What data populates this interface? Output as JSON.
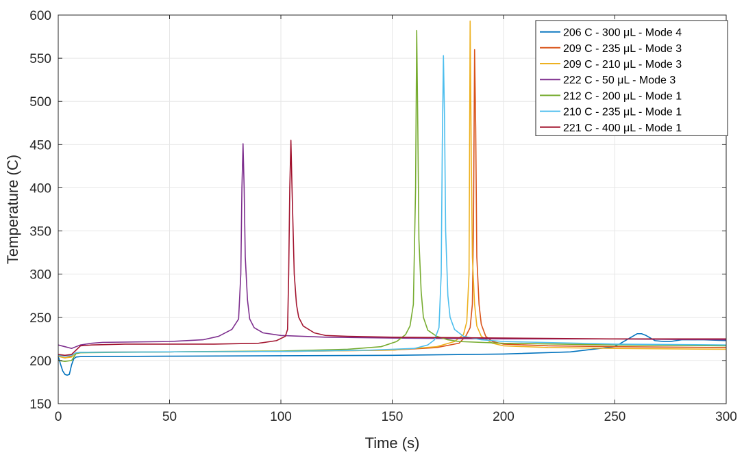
{
  "chart_data": {
    "type": "line",
    "title": "",
    "xlabel": "Time (s)",
    "ylabel": "Temperature (C)",
    "xlim": [
      0,
      300
    ],
    "ylim": [
      150,
      600
    ],
    "xticks": [
      0,
      50,
      100,
      150,
      200,
      250,
      300
    ],
    "yticks": [
      150,
      200,
      250,
      300,
      350,
      400,
      450,
      500,
      550,
      600
    ],
    "grid": true,
    "legend_position": "top-right",
    "series": [
      {
        "name": "206 C - 300 μL - Mode 4",
        "color": "#0072BD",
        "points": [
          [
            0,
            205
          ],
          [
            1,
            196
          ],
          [
            2,
            188
          ],
          [
            3,
            184
          ],
          [
            4,
            183
          ],
          [
            5,
            184
          ],
          [
            6,
            195
          ],
          [
            7,
            202
          ],
          [
            8,
            204
          ],
          [
            10,
            204.5
          ],
          [
            50,
            205
          ],
          [
            100,
            205.5
          ],
          [
            150,
            206
          ],
          [
            200,
            207.5
          ],
          [
            230,
            210
          ],
          [
            250,
            216
          ],
          [
            256,
            225
          ],
          [
            260,
            231
          ],
          [
            262,
            231
          ],
          [
            264,
            229
          ],
          [
            268,
            223
          ],
          [
            272,
            222
          ],
          [
            275,
            222
          ],
          [
            280,
            224
          ],
          [
            290,
            224
          ],
          [
            300,
            223
          ]
        ]
      },
      {
        "name": "209 C - 235 μL - Mode 3",
        "color": "#D95319",
        "points": [
          [
            0,
            205
          ],
          [
            3,
            203
          ],
          [
            6,
            205
          ],
          [
            8,
            209
          ],
          [
            10,
            209.5
          ],
          [
            50,
            210
          ],
          [
            100,
            210.5
          ],
          [
            150,
            212
          ],
          [
            170,
            215
          ],
          [
            180,
            220
          ],
          [
            183,
            228
          ],
          [
            185,
            238
          ],
          [
            186,
            265
          ],
          [
            186.5,
            360
          ],
          [
            187,
            560
          ],
          [
            187.5,
            470
          ],
          [
            188,
            320
          ],
          [
            189,
            265
          ],
          [
            190,
            242
          ],
          [
            192,
            228
          ],
          [
            195,
            222
          ],
          [
            200,
            219
          ],
          [
            220,
            217
          ],
          [
            250,
            216
          ],
          [
            300,
            215
          ]
        ]
      },
      {
        "name": "209 C - 210 μL - Mode 3",
        "color": "#EDB120",
        "points": [
          [
            0,
            205
          ],
          [
            3,
            203
          ],
          [
            6,
            204
          ],
          [
            8,
            209
          ],
          [
            10,
            209.5
          ],
          [
            50,
            210
          ],
          [
            100,
            210.5
          ],
          [
            150,
            212
          ],
          [
            170,
            216
          ],
          [
            178,
            222
          ],
          [
            182,
            230
          ],
          [
            183.5,
            245
          ],
          [
            184.5,
            300
          ],
          [
            185,
            593
          ],
          [
            185.5,
            440
          ],
          [
            186,
            320
          ],
          [
            187,
            265
          ],
          [
            188,
            240
          ],
          [
            190,
            228
          ],
          [
            195,
            220
          ],
          [
            200,
            217
          ],
          [
            220,
            215
          ],
          [
            250,
            214
          ],
          [
            300,
            213
          ]
        ]
      },
      {
        "name": "222 C - 50 μL - Mode 3",
        "color": "#7E2F8E",
        "points": [
          [
            0,
            218
          ],
          [
            3,
            216
          ],
          [
            6,
            214
          ],
          [
            8,
            216
          ],
          [
            10,
            218
          ],
          [
            15,
            220
          ],
          [
            20,
            221
          ],
          [
            50,
            222
          ],
          [
            65,
            224
          ],
          [
            72,
            228
          ],
          [
            78,
            236
          ],
          [
            81,
            248
          ],
          [
            82,
            300
          ],
          [
            82.5,
            400
          ],
          [
            83,
            451
          ],
          [
            83.5,
            400
          ],
          [
            84,
            320
          ],
          [
            85,
            270
          ],
          [
            86,
            248
          ],
          [
            88,
            238
          ],
          [
            92,
            232
          ],
          [
            100,
            229
          ],
          [
            120,
            227
          ],
          [
            150,
            226
          ],
          [
            200,
            225
          ],
          [
            250,
            225
          ],
          [
            300,
            224
          ]
        ]
      },
      {
        "name": "212 C - 200 μL - Mode 1",
        "color": "#77AC30",
        "points": [
          [
            0,
            200
          ],
          [
            3,
            199
          ],
          [
            6,
            200
          ],
          [
            8,
            208
          ],
          [
            10,
            209
          ],
          [
            50,
            210
          ],
          [
            100,
            211
          ],
          [
            130,
            213
          ],
          [
            145,
            216
          ],
          [
            152,
            222
          ],
          [
            156,
            230
          ],
          [
            158,
            240
          ],
          [
            159.5,
            265
          ],
          [
            160.5,
            400
          ],
          [
            161,
            582
          ],
          [
            161.5,
            470
          ],
          [
            162,
            340
          ],
          [
            163,
            280
          ],
          [
            164,
            250
          ],
          [
            166,
            235
          ],
          [
            170,
            228
          ],
          [
            175,
            224
          ],
          [
            180,
            222
          ],
          [
            200,
            220
          ],
          [
            250,
            218
          ],
          [
            300,
            217
          ]
        ]
      },
      {
        "name": "210 C - 235 μL - Mode 1",
        "color": "#4DBEEE",
        "points": [
          [
            0,
            206
          ],
          [
            3,
            205
          ],
          [
            6,
            206
          ],
          [
            8,
            209
          ],
          [
            10,
            209.5
          ],
          [
            50,
            210
          ],
          [
            100,
            210.5
          ],
          [
            140,
            212
          ],
          [
            160,
            214
          ],
          [
            166,
            218
          ],
          [
            169,
            224
          ],
          [
            171,
            238
          ],
          [
            172,
            300
          ],
          [
            172.5,
            450
          ],
          [
            173,
            553
          ],
          [
            173.5,
            480
          ],
          [
            174,
            350
          ],
          [
            175,
            275
          ],
          [
            176,
            250
          ],
          [
            178,
            236
          ],
          [
            182,
            228
          ],
          [
            190,
            224
          ],
          [
            200,
            222
          ],
          [
            250,
            219
          ],
          [
            300,
            218
          ]
        ]
      },
      {
        "name": "221 C - 400 μL - Mode 1",
        "color": "#A2142F",
        "points": [
          [
            0,
            207
          ],
          [
            3,
            206
          ],
          [
            6,
            207
          ],
          [
            8,
            212
          ],
          [
            10,
            217
          ],
          [
            15,
            218
          ],
          [
            30,
            219
          ],
          [
            70,
            219
          ],
          [
            90,
            220
          ],
          [
            98,
            223
          ],
          [
            102,
            228
          ],
          [
            103,
            236
          ],
          [
            103.5,
            300
          ],
          [
            104,
            400
          ],
          [
            104.5,
            455
          ],
          [
            105,
            400
          ],
          [
            106,
            300
          ],
          [
            107,
            265
          ],
          [
            108,
            250
          ],
          [
            110,
            240
          ],
          [
            115,
            232
          ],
          [
            120,
            229
          ],
          [
            130,
            228
          ],
          [
            150,
            227
          ],
          [
            200,
            226
          ],
          [
            250,
            225
          ],
          [
            300,
            225
          ]
        ]
      }
    ]
  }
}
